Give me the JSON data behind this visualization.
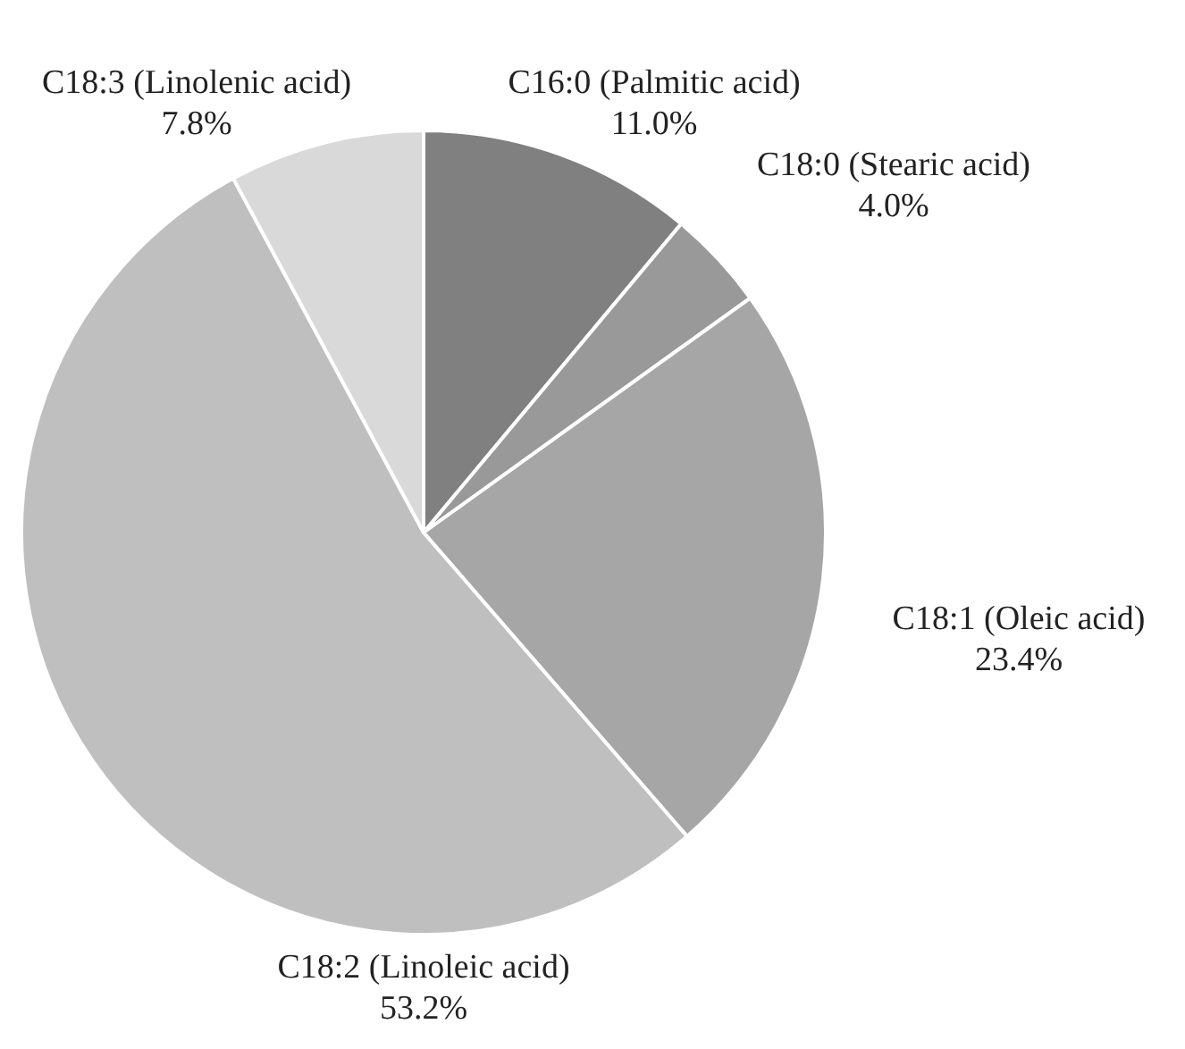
{
  "chart_data": {
    "type": "pie",
    "categories": [
      "C16:0 (Palmitic acid)",
      "C18:0 (Stearic acid)",
      "C18:1 (Oleic acid)",
      "C18:2 (Linoleic acid)",
      "C18:3 (Linolenic acid)"
    ],
    "values": [
      11.0,
      4.0,
      23.4,
      53.2,
      7.8
    ],
    "value_labels": [
      "11.0%",
      "4.0%",
      "23.4%",
      "53.2%",
      "7.8%"
    ],
    "colors": [
      "#808080",
      "#999999",
      "#a6a6a6",
      "#bfbfbf",
      "#d9d9d9"
    ]
  }
}
